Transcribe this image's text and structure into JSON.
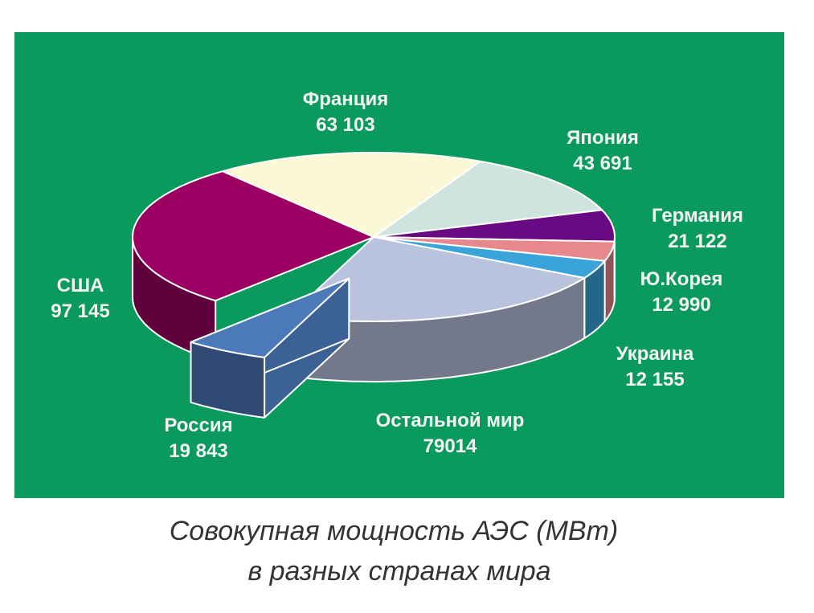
{
  "chart_data": {
    "type": "pie",
    "title": "Совокупная мощность АЭС (МВт)",
    "subtitle": "в разных странах мира",
    "categories": [
      "США",
      "Франция",
      "Япония",
      "Германия",
      "Ю.Корея",
      "Украина",
      "Остальной мир",
      "Россия"
    ],
    "values": [
      97145,
      63103,
      43691,
      21122,
      12990,
      12155,
      79014,
      19843
    ],
    "value_labels": [
      "97 145",
      "63 103",
      "43 691",
      "21 122",
      "12 990",
      "12 155",
      "79014",
      "19 843"
    ],
    "colors": [
      "#9b0062",
      "#fbf8d6",
      "#cfe4de",
      "#6a0a82",
      "#e8888c",
      "#3aa4da",
      "#b9c3de",
      "#4b79b9"
    ],
    "exploded": [
      "Россия"
    ]
  }
}
